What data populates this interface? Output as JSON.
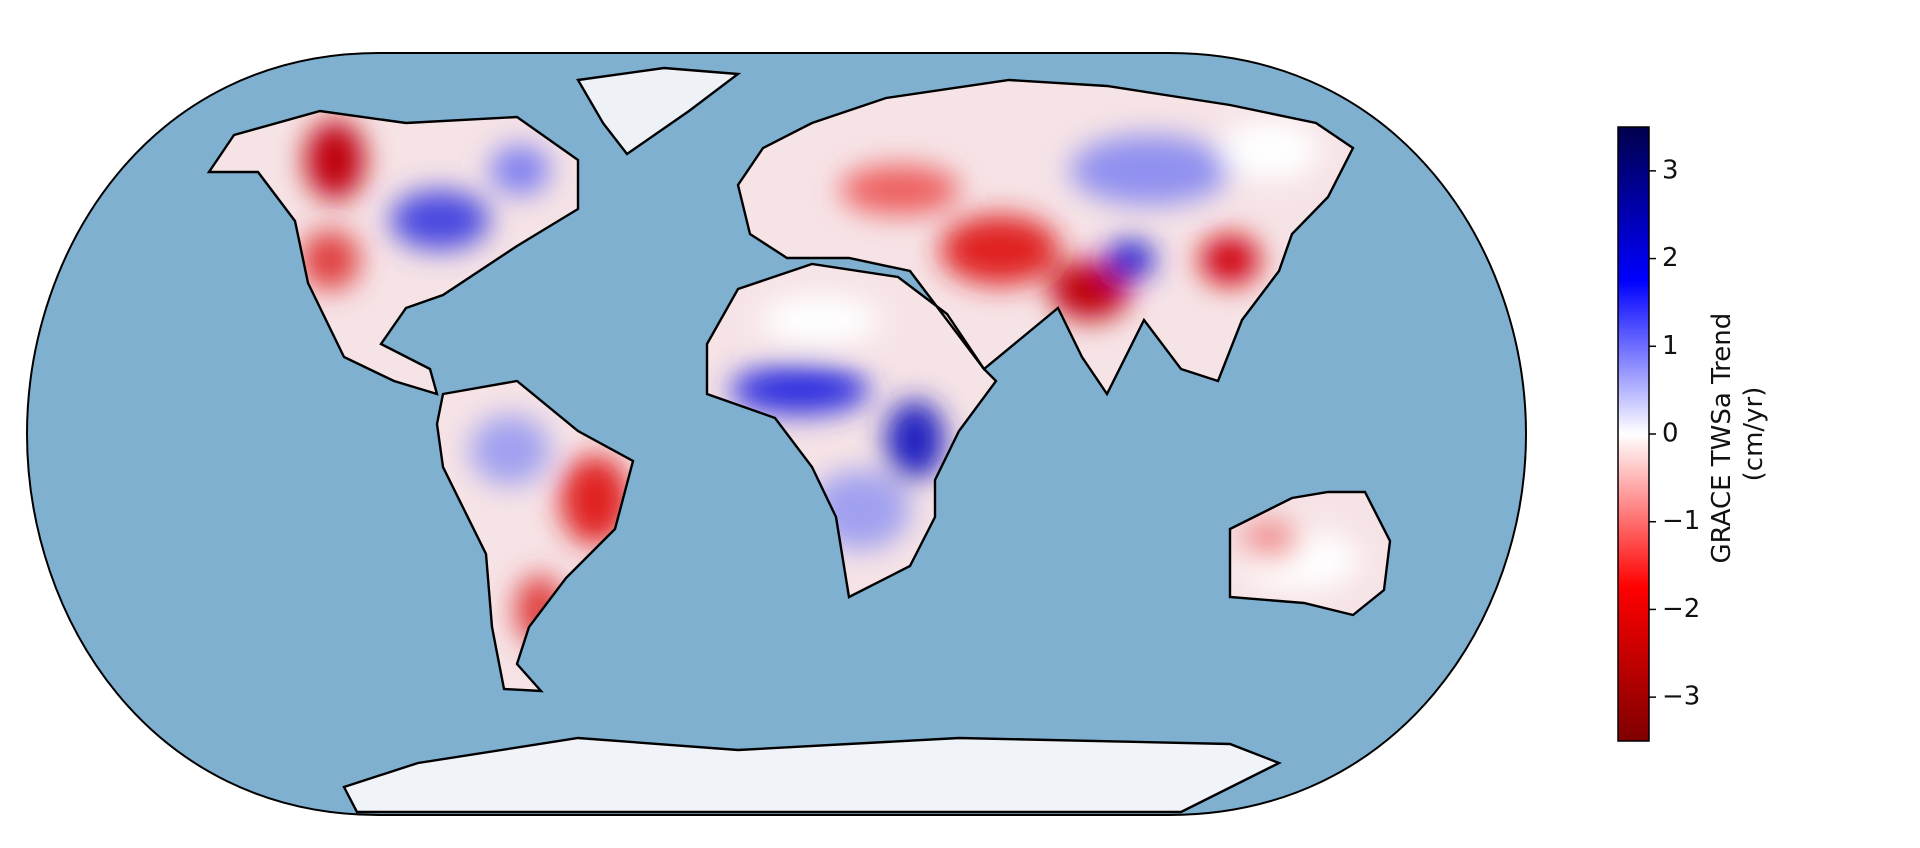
{
  "colorbar": {
    "label": [
      "GRACE TWSa Trend",
      "(cm/yr)"
    ],
    "lim": [
      -3.5,
      3.5
    ],
    "colors": [
      "#7f0000",
      "#ff0000",
      "#ffffff",
      "#0000ff",
      "#00004c"
    ],
    "ticks": [
      {
        "value": -3,
        "label": "−3"
      },
      {
        "value": -2,
        "label": "−2"
      },
      {
        "value": -1,
        "label": "−1"
      },
      0,
      1,
      2,
      3
    ]
  }
}
